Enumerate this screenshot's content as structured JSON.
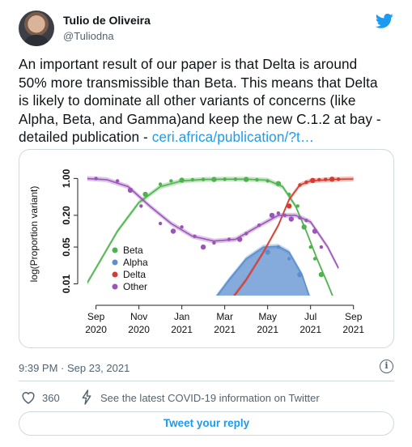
{
  "author": {
    "name": "Tulio de Oliveira",
    "handle": "@Tuliodna"
  },
  "tweet": {
    "text_lines": [
      "An important result of our paper is that Delta is around",
      "50% more transmissible than Beta. This means that Delta",
      "is likely to dominate all other variants of concerns (like",
      "Alpha, Beta, and Gamma)and keep the new C.1.2  at bay -",
      "detailed publication - "
    ],
    "link_text": "ceri.africa/publication/?t…",
    "timestamp": "9:39 PM · Sep 23, 2021"
  },
  "actions": {
    "likes_count": "360",
    "covid_label": "See the latest COVID-19 information on Twitter",
    "reply_label": "Tweet your reply"
  },
  "colors": {
    "twitter_blue": "#1d9bf0",
    "text_primary": "#0f1419",
    "text_secondary": "#536471",
    "border": "#cfd9de"
  },
  "chart_data": {
    "type": "line",
    "title": "",
    "xlabel": "",
    "ylabel": "log(Proportion variant)",
    "y_scale": "log",
    "ylim": [
      0.006,
      1.3
    ],
    "y_ticks": [
      {
        "value": 1.0,
        "label": "1.00"
      },
      {
        "value": 0.2,
        "label": "0.20"
      },
      {
        "value": 0.05,
        "label": "0.05"
      },
      {
        "value": 0.01,
        "label": "0.01"
      }
    ],
    "x_unit": "months since Sep 2020",
    "xlim": [
      -0.4,
      12.2
    ],
    "x_ticks": [
      {
        "value": 0,
        "label": [
          "Sep",
          "2020"
        ]
      },
      {
        "value": 2,
        "label": [
          "Nov",
          "2020"
        ]
      },
      {
        "value": 4,
        "label": [
          "Jan",
          "2021"
        ]
      },
      {
        "value": 6,
        "label": [
          "Mar",
          "2021"
        ]
      },
      {
        "value": 8,
        "label": [
          "May",
          "2021"
        ]
      },
      {
        "value": 10,
        "label": [
          "Jul",
          "2021"
        ]
      },
      {
        "value": 12,
        "label": [
          "Sep",
          "2021"
        ]
      }
    ],
    "legend": {
      "placement": "left",
      "entries": [
        "Beta",
        "Alpha",
        "Delta",
        "Other"
      ]
    },
    "series": [
      {
        "name": "Beta",
        "color": "#4fb24f",
        "fit": [
          [
            -0.5,
            0.009
          ],
          [
            0,
            0.02
          ],
          [
            1,
            0.1
          ],
          [
            2,
            0.35
          ],
          [
            3,
            0.7
          ],
          [
            4,
            0.9
          ],
          [
            5,
            0.96
          ],
          [
            6,
            0.97
          ],
          [
            7,
            0.97
          ],
          [
            8,
            0.93
          ],
          [
            8.7,
            0.7
          ],
          [
            9.3,
            0.3
          ],
          [
            9.8,
            0.1
          ],
          [
            10.3,
            0.03
          ],
          [
            10.8,
            0.01
          ],
          [
            11.1,
            0.005
          ]
        ],
        "points": [
          [
            2.3,
            0.5
          ],
          [
            3,
            0.78
          ],
          [
            3.5,
            0.9
          ],
          [
            4,
            0.93
          ],
          [
            4.5,
            0.95
          ],
          [
            5,
            0.96
          ],
          [
            5.5,
            0.96
          ],
          [
            6,
            0.97
          ],
          [
            6.5,
            0.97
          ],
          [
            7,
            0.96
          ],
          [
            7.5,
            0.95
          ],
          [
            8,
            0.9
          ],
          [
            8.5,
            0.8
          ],
          [
            9,
            0.5
          ],
          [
            9.4,
            0.3
          ],
          [
            9.7,
            0.12
          ],
          [
            10,
            0.05
          ],
          [
            10.2,
            0.03
          ],
          [
            10.5,
            0.015
          ]
        ]
      },
      {
        "name": "Alpha",
        "color": "#5b8fcf",
        "fit": [
          [
            5.5,
            0.005
          ],
          [
            6.2,
            0.012
          ],
          [
            7,
            0.03
          ],
          [
            7.8,
            0.05
          ],
          [
            8.5,
            0.052
          ],
          [
            9,
            0.04
          ],
          [
            9.6,
            0.015
          ],
          [
            10,
            0.005
          ]
        ],
        "points": [
          [
            8,
            0.04
          ],
          [
            8.5,
            0.05
          ],
          [
            9,
            0.03
          ],
          [
            9.5,
            0.015
          ]
        ]
      },
      {
        "name": "Delta",
        "color": "#d63b2f",
        "fit": [
          [
            6.3,
            0.005
          ],
          [
            7,
            0.012
          ],
          [
            7.8,
            0.04
          ],
          [
            8.5,
            0.13
          ],
          [
            9,
            0.4
          ],
          [
            9.5,
            0.75
          ],
          [
            10,
            0.9
          ],
          [
            11,
            0.96
          ],
          [
            12,
            0.98
          ]
        ],
        "points": [
          [
            9,
            0.3
          ],
          [
            9.5,
            0.75
          ],
          [
            9.8,
            0.85
          ],
          [
            10.1,
            0.92
          ],
          [
            10.4,
            0.95
          ],
          [
            10.7,
            0.96
          ],
          [
            11,
            0.97
          ],
          [
            11.3,
            0.97
          ]
        ]
      },
      {
        "name": "Other",
        "color": "#9b55b8",
        "fit": [
          [
            -0.5,
            1
          ],
          [
            0.5,
            0.95
          ],
          [
            1.5,
            0.7
          ],
          [
            2.5,
            0.3
          ],
          [
            3.5,
            0.14
          ],
          [
            4.5,
            0.08
          ],
          [
            5.5,
            0.065
          ],
          [
            6.5,
            0.07
          ],
          [
            7.5,
            0.12
          ],
          [
            8.5,
            0.2
          ],
          [
            9.3,
            0.2
          ],
          [
            10,
            0.15
          ],
          [
            10.8,
            0.05
          ],
          [
            11.3,
            0.02
          ]
        ],
        "points": [
          [
            -0.5,
            1
          ],
          [
            0,
            1
          ],
          [
            1,
            0.9
          ],
          [
            1.6,
            0.6
          ],
          [
            2.1,
            0.3
          ],
          [
            3,
            0.14
          ],
          [
            3.6,
            0.1
          ],
          [
            4,
            0.12
          ],
          [
            4.6,
            0.08
          ],
          [
            5,
            0.05
          ],
          [
            5.5,
            0.06
          ],
          [
            6.2,
            0.07
          ],
          [
            6.7,
            0.07
          ],
          [
            7,
            0.09
          ],
          [
            7.6,
            0.13
          ],
          [
            8.2,
            0.2
          ],
          [
            8.5,
            0.22
          ],
          [
            8.8,
            0.2
          ],
          [
            9.1,
            0.17
          ],
          [
            9.5,
            0.18
          ],
          [
            9.8,
            0.16
          ],
          [
            10.2,
            0.1
          ],
          [
            10.5,
            0.05
          ]
        ]
      }
    ]
  }
}
